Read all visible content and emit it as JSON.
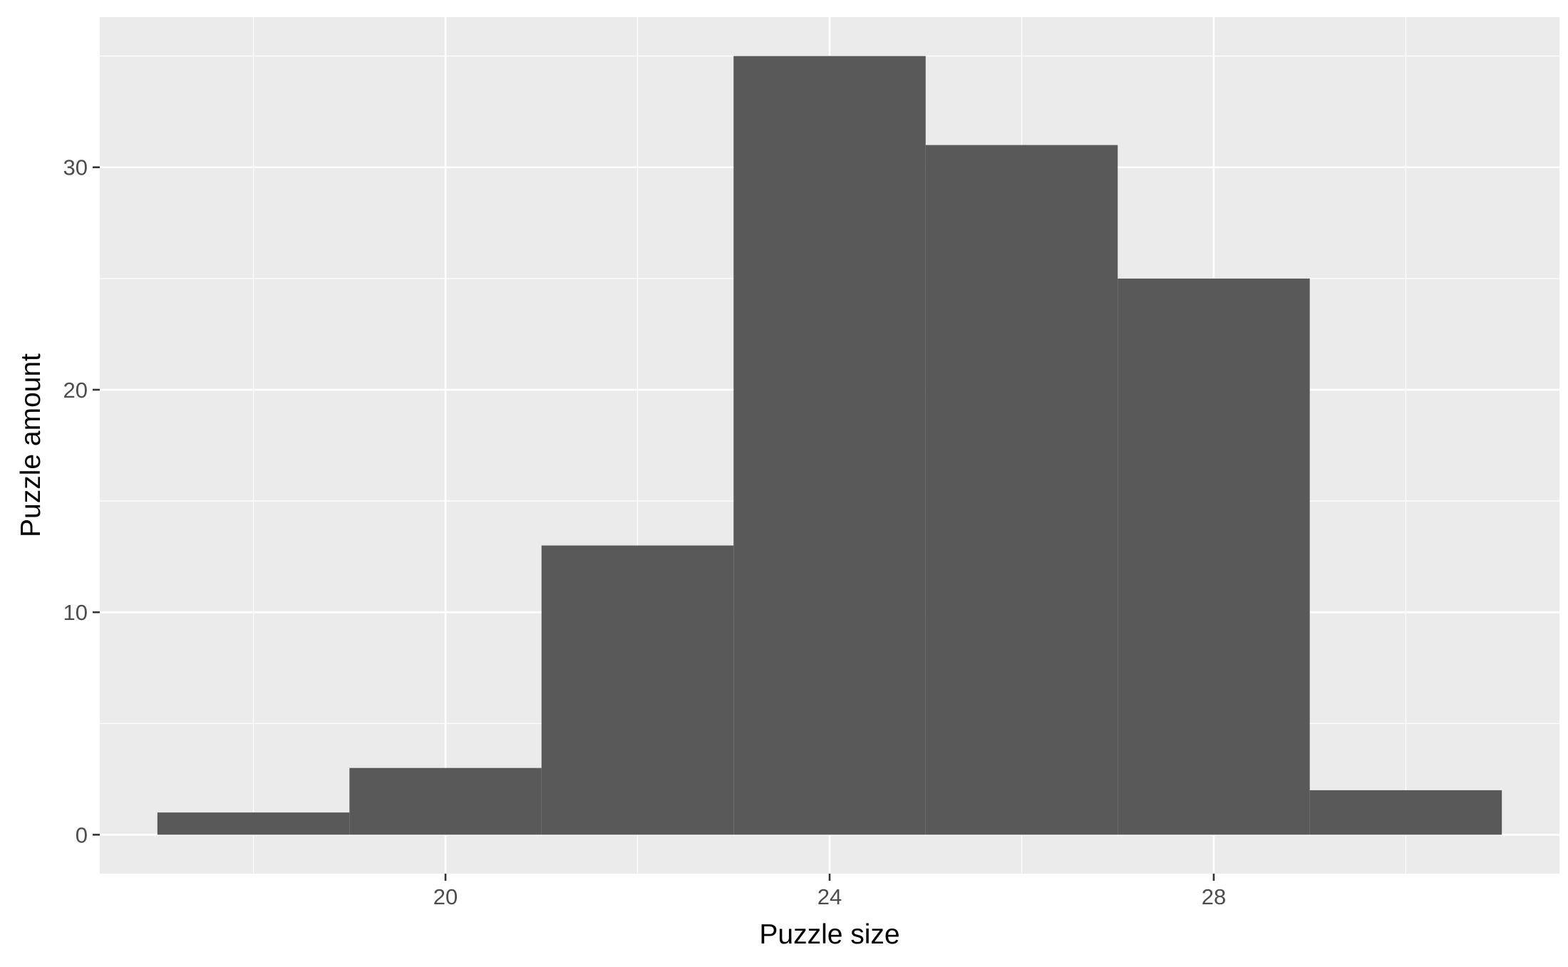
{
  "chart_data": {
    "type": "bar",
    "subtype": "histogram",
    "title": "",
    "xlabel": "Puzzle size",
    "ylabel": "Puzzle amount",
    "bins": [
      {
        "x_start": 17,
        "x_end": 19,
        "count": 1
      },
      {
        "x_start": 19,
        "x_end": 21,
        "count": 3
      },
      {
        "x_start": 21,
        "x_end": 23,
        "count": 13
      },
      {
        "x_start": 23,
        "x_end": 25,
        "count": 35
      },
      {
        "x_start": 25,
        "x_end": 27,
        "count": 31
      },
      {
        "x_start": 27,
        "x_end": 29,
        "count": 25
      },
      {
        "x_start": 29,
        "x_end": 31,
        "count": 2
      }
    ],
    "xlim": [
      16.4,
      31.6
    ],
    "ylim": [
      -1.75,
      36.75
    ],
    "x_ticks": [
      20,
      24,
      28
    ],
    "x_tick_labels": [
      "20",
      "24",
      "28"
    ],
    "x_minor_ticks": [
      18,
      22,
      26,
      30
    ],
    "y_ticks": [
      0,
      10,
      20,
      30
    ],
    "y_tick_labels": [
      "0",
      "10",
      "20",
      "30"
    ],
    "y_minor_ticks": [
      5,
      15,
      25,
      35
    ],
    "grid": true,
    "legend": "none",
    "colors": {
      "bar_fill": "#595959",
      "panel_background": "#ebebeb",
      "grid_line": "#ffffff",
      "tick_label": "#4d4d4d",
      "tick_mark": "#333333",
      "axis_title": "#000000"
    }
  }
}
